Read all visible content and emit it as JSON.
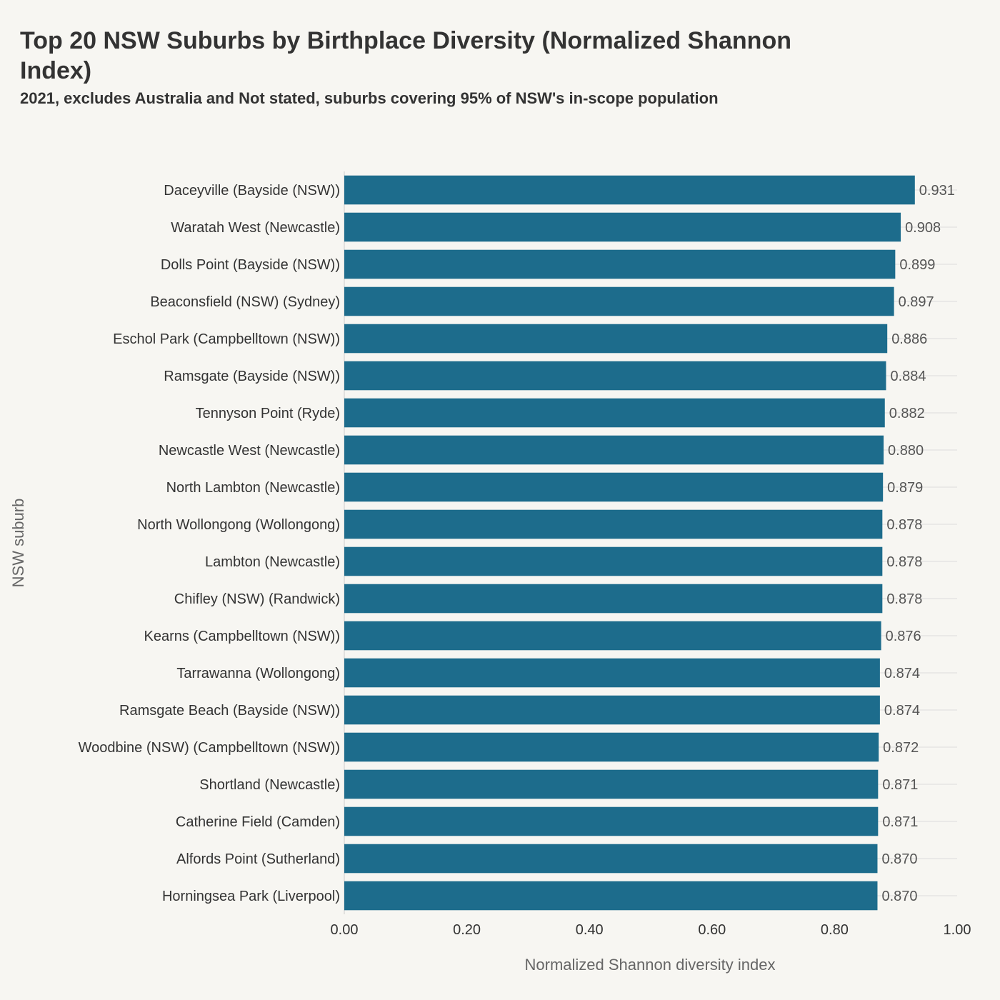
{
  "title": "Top 20 NSW Suburbs by Birthplace Diversity (Normalized Shannon Index)",
  "subtitle": "2021, excludes Australia and Not stated, suburbs covering 95% of NSW's in-scope population",
  "colors": {
    "bar": "#1d6c8c",
    "background": "#f7f6f2",
    "grid": "#dcdcdc"
  },
  "chart_data": {
    "type": "bar",
    "orientation": "horizontal",
    "title": "Top 20 NSW Suburbs by Birthplace Diversity (Normalized Shannon Index)",
    "subtitle": "2021, excludes Australia and Not stated, suburbs covering 95% of NSW's in-scope population",
    "xlabel": "Normalized Shannon diversity index",
    "ylabel": "NSW suburb",
    "xlim": [
      0,
      1
    ],
    "xticks": [
      "0.00",
      "0.20",
      "0.40",
      "0.60",
      "0.80",
      "1.00"
    ],
    "grid": "horizontal",
    "categories": [
      "Daceyville (Bayside (NSW))",
      "Waratah West (Newcastle)",
      "Dolls Point (Bayside (NSW))",
      "Beaconsfield (NSW) (Sydney)",
      "Eschol Park (Campbelltown (NSW))",
      "Ramsgate (Bayside (NSW))",
      "Tennyson Point (Ryde)",
      "Newcastle West (Newcastle)",
      "North Lambton (Newcastle)",
      "North Wollongong (Wollongong)",
      "Lambton (Newcastle)",
      "Chifley (NSW) (Randwick)",
      "Kearns (Campbelltown (NSW))",
      "Tarrawanna (Wollongong)",
      "Ramsgate Beach (Bayside (NSW))",
      "Woodbine (NSW) (Campbelltown (NSW))",
      "Shortland (Newcastle)",
      "Catherine Field (Camden)",
      "Alfords Point (Sutherland)",
      "Horningsea Park (Liverpool)"
    ],
    "values": [
      0.931,
      0.908,
      0.899,
      0.897,
      0.886,
      0.884,
      0.882,
      0.88,
      0.879,
      0.878,
      0.878,
      0.878,
      0.876,
      0.874,
      0.874,
      0.872,
      0.871,
      0.871,
      0.87,
      0.87
    ],
    "value_labels": [
      "0.931",
      "0.908",
      "0.899",
      "0.897",
      "0.886",
      "0.884",
      "0.882",
      "0.880",
      "0.879",
      "0.878",
      "0.878",
      "0.878",
      "0.876",
      "0.874",
      "0.874",
      "0.872",
      "0.871",
      "0.871",
      "0.870",
      "0.870"
    ]
  }
}
